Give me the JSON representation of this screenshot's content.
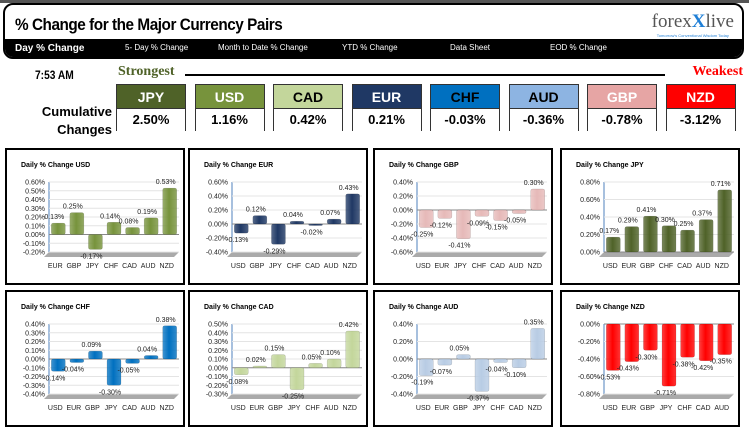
{
  "header": {
    "title": "% Change for the Major Currency Pairs",
    "logo": "forexlive",
    "logo_tagline": "Tomorrow's Conventional Wisdom Today"
  },
  "nav": [
    {
      "label": "Day % Change",
      "active": true
    },
    {
      "label": "5- Day % Change"
    },
    {
      "label": "Month to Date % Change"
    },
    {
      "label": "YTD % Change"
    },
    {
      "label": "Data Sheet"
    },
    {
      "label": "EOD % Change"
    }
  ],
  "time": "7:53 AM",
  "strongest": "Strongest",
  "weakest": "Weakest",
  "cumulative_label": "Cumulative Changes",
  "ranking": [
    {
      "ccy": "JPY",
      "value": "2.50%",
      "color": "#4f6228",
      "text": "#ffffff"
    },
    {
      "ccy": "USD",
      "value": "1.16%",
      "color": "#77933c",
      "text": "#ffffff"
    },
    {
      "ccy": "CAD",
      "value": "0.42%",
      "color": "#c3d69b",
      "text": "#000000"
    },
    {
      "ccy": "EUR",
      "value": "0.21%",
      "color": "#1f3864",
      "text": "#ffffff"
    },
    {
      "ccy": "CHF",
      "value": "-0.03%",
      "color": "#0070c0",
      "text": "#000000"
    },
    {
      "ccy": "AUD",
      "value": "-0.36%",
      "color": "#8db4e2",
      "text": "#000000"
    },
    {
      "ccy": "GBP",
      "value": "-0.78%",
      "color": "#e6a5a4",
      "text": "#ffffff"
    },
    {
      "ccy": "NZD",
      "value": "-3.12%",
      "color": "#ff0000",
      "text": "#ffffff"
    }
  ],
  "chart_data": [
    {
      "type": "bar",
      "title": "Daily % Change USD",
      "categories": [
        "EUR",
        "GBP",
        "JPY",
        "CHF",
        "CAD",
        "AUD",
        "NZD"
      ],
      "values": [
        0.13,
        0.25,
        -0.17,
        0.14,
        0.08,
        0.19,
        0.53
      ],
      "ylim": [
        -0.2,
        0.6
      ],
      "step": 0.1,
      "color": "#77933c"
    },
    {
      "type": "bar",
      "title": "Daily % Change EUR",
      "categories": [
        "USD",
        "GBP",
        "JPY",
        "CHF",
        "CAD",
        "AUD",
        "NZD"
      ],
      "values": [
        -0.13,
        0.12,
        -0.29,
        0.04,
        -0.02,
        0.07,
        0.43
      ],
      "ylim": [
        -0.4,
        0.6
      ],
      "step": 0.2,
      "color": "#1f3864"
    },
    {
      "type": "bar",
      "title": "Daily % Change GBP",
      "categories": [
        "USD",
        "EUR",
        "JPY",
        "CHF",
        "CAD",
        "AUD",
        "NZD"
      ],
      "values": [
        -0.25,
        -0.12,
        -0.41,
        -0.09,
        -0.15,
        -0.05,
        0.3
      ],
      "ylim": [
        -0.6,
        0.4
      ],
      "step": 0.2,
      "color": "#e6b9b8"
    },
    {
      "type": "bar",
      "title": "Daily % Change JPY",
      "categories": [
        "USD",
        "EUR",
        "GBP",
        "CHF",
        "CAD",
        "AUD",
        "NZD"
      ],
      "values": [
        0.17,
        0.29,
        0.41,
        0.3,
        0.25,
        0.37,
        0.71
      ],
      "ylim": [
        0,
        0.8
      ],
      "step": 0.2,
      "color": "#4f6228"
    },
    {
      "type": "bar",
      "title": "Daily % Change CHF",
      "categories": [
        "USD",
        "EUR",
        "GBP",
        "JPY",
        "CAD",
        "AUD",
        "NZD"
      ],
      "values": [
        -0.14,
        -0.04,
        0.09,
        -0.3,
        -0.05,
        0.04,
        0.38
      ],
      "ylim": [
        -0.4,
        0.4
      ],
      "step": 0.1,
      "color": "#0070c0"
    },
    {
      "type": "bar",
      "title": "Daily % Change CAD",
      "categories": [
        "USD",
        "EUR",
        "GBP",
        "JPY",
        "CHF",
        "AUD",
        "NZD"
      ],
      "values": [
        -0.08,
        0.02,
        0.15,
        -0.25,
        0.05,
        0.1,
        0.42
      ],
      "ylim": [
        -0.3,
        0.5
      ],
      "step": 0.1,
      "color": "#c3d69b"
    },
    {
      "type": "bar",
      "title": "Daily % Change AUD",
      "categories": [
        "USD",
        "EUR",
        "GBP",
        "JPY",
        "CHF",
        "CAD",
        "NZD"
      ],
      "values": [
        -0.19,
        -0.07,
        0.05,
        -0.37,
        -0.04,
        -0.1,
        0.35
      ],
      "ylim": [
        -0.4,
        0.4
      ],
      "step": 0.2,
      "color": "#b8cce4"
    },
    {
      "type": "bar",
      "title": "Daily % Change NZD",
      "categories": [
        "USD",
        "EUR",
        "GBP",
        "JPY",
        "CHF",
        "CAD",
        "AUD"
      ],
      "values": [
        -0.53,
        -0.43,
        -0.3,
        -0.71,
        -0.38,
        -0.42,
        -0.35
      ],
      "ylim": [
        -0.8,
        0
      ],
      "step": 0.2,
      "color": "#ff0000"
    }
  ]
}
